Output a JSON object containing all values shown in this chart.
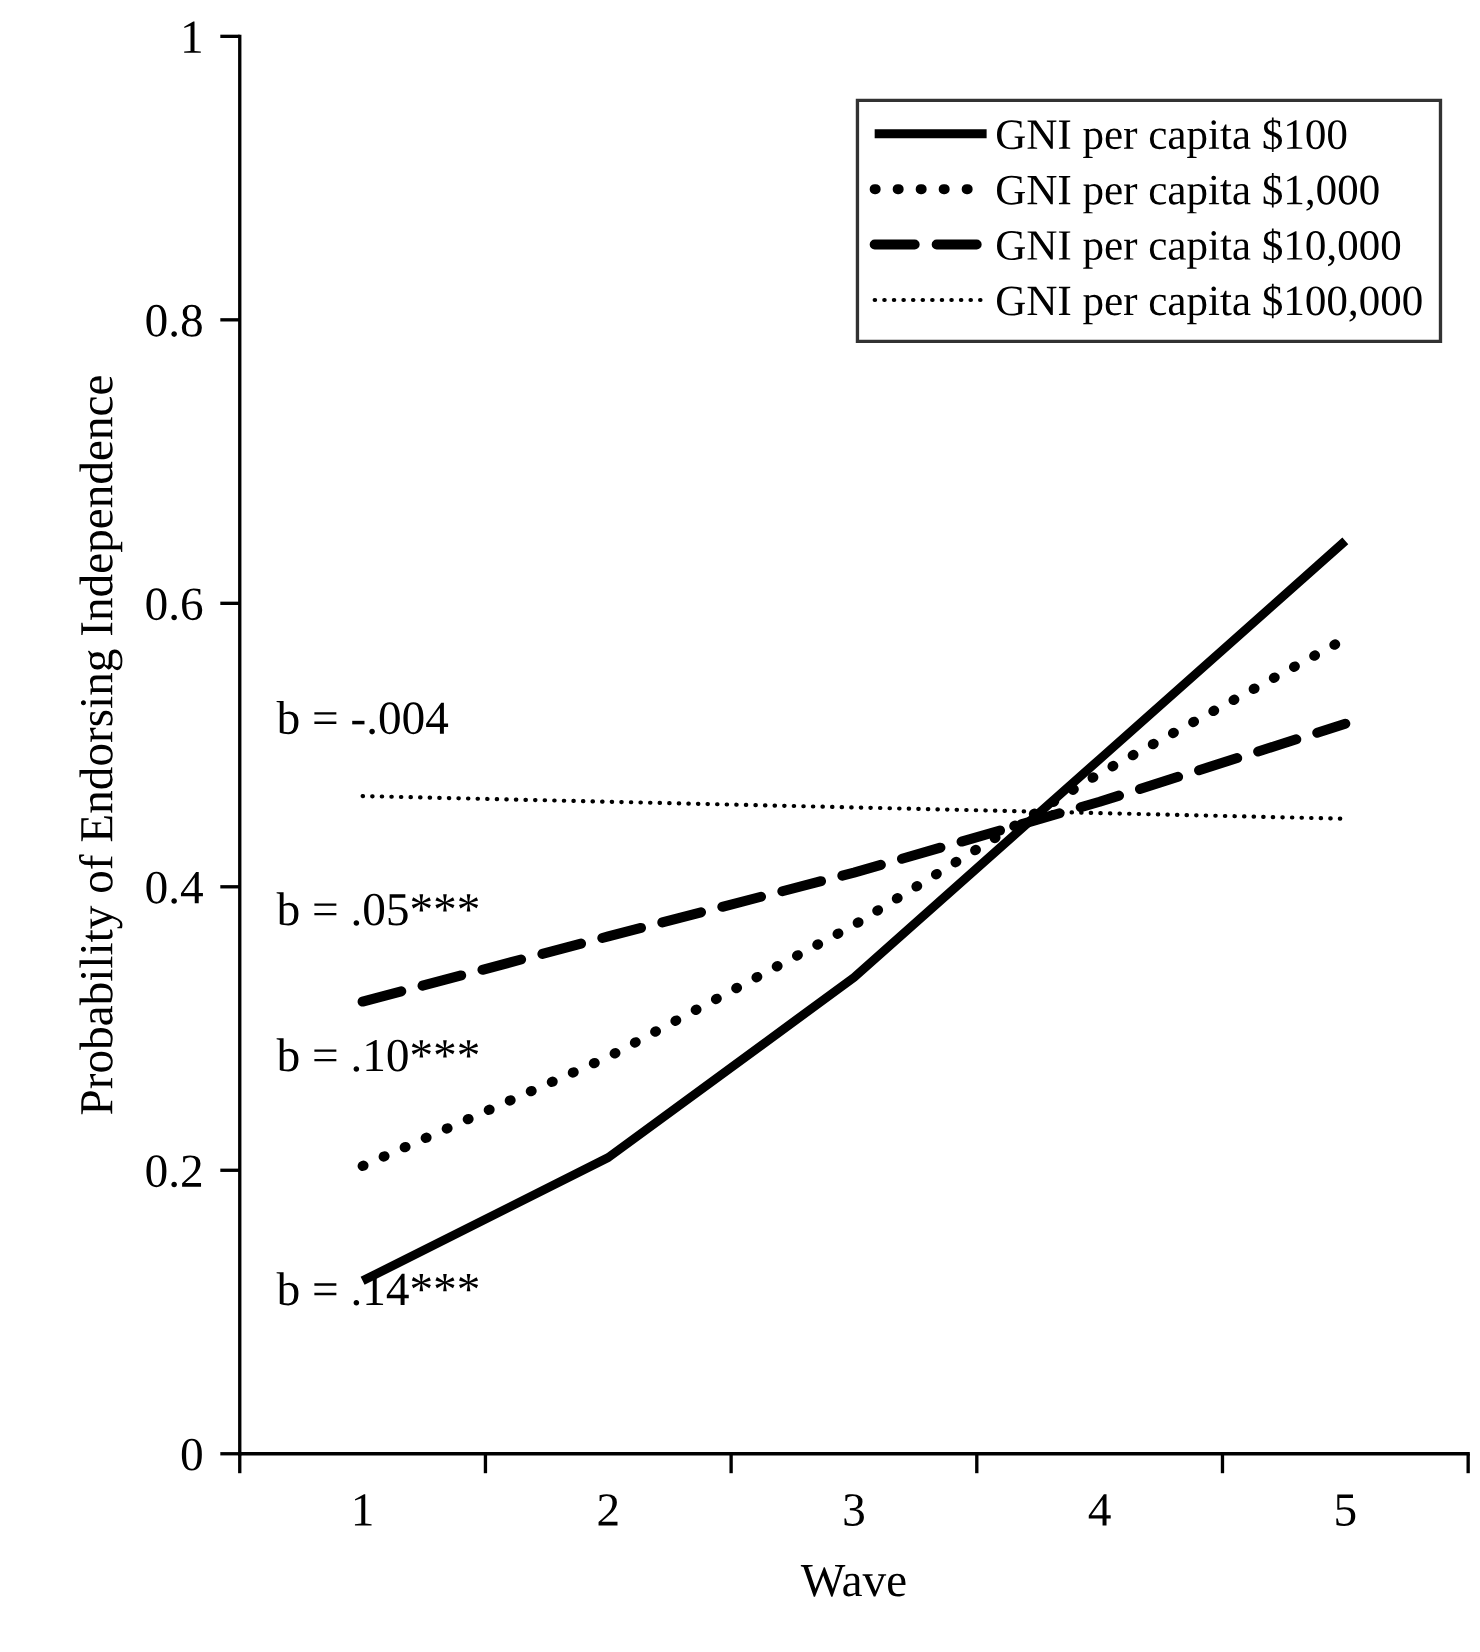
{
  "chart_data": {
    "type": "line",
    "xlabel": "Wave",
    "ylabel": "Probability of Endorsing Independence",
    "categories": [
      "1",
      "2",
      "3",
      "4",
      "5"
    ],
    "series": [
      {
        "name": "GNI per capita $100",
        "color": "#000000",
        "line_style": "solid",
        "values": [
          0.122,
          0.209,
          0.336,
          0.49,
          0.644
        ]
      },
      {
        "name": "GNI per capita $1,000",
        "color": "#000000",
        "line_style": "dotted",
        "values": [
          0.203,
          0.28,
          0.373,
          0.48,
          0.575
        ]
      },
      {
        "name": "GNI per capita $10,000",
        "color": "#000000",
        "line_style": "dashed",
        "values": [
          0.319,
          0.365,
          0.41,
          0.46,
          0.515
        ]
      },
      {
        "name": "GNI per capita $100,000",
        "color": "#000000",
        "line_style": "dotted",
        "values": [
          0.464,
          0.46,
          0.456,
          0.452,
          0.448
        ]
      }
    ],
    "ylim": [
      0,
      1
    ],
    "yticks": [
      0,
      0.2,
      0.4,
      0.6,
      0.8,
      1
    ],
    "grid": false,
    "legend": "top right",
    "marker": "none",
    "annotations": [
      "b = -.004",
      "b = .05***",
      "b = .10***",
      "b = .14***"
    ]
  }
}
